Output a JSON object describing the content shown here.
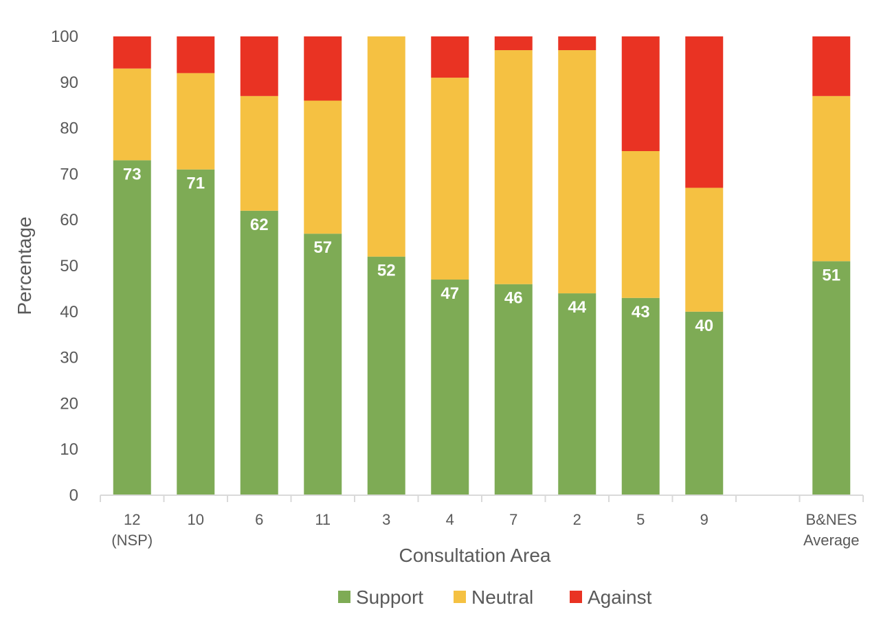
{
  "chart_data": {
    "type": "bar",
    "stacked": true,
    "categories": [
      "12 (NSP)",
      "10",
      "6",
      "11",
      "3",
      "4",
      "7",
      "2",
      "5",
      "9",
      "",
      "B&NES Average"
    ],
    "category_lines": [
      [
        "12",
        "(NSP)"
      ],
      [
        "10"
      ],
      [
        "6"
      ],
      [
        "11"
      ],
      [
        "3"
      ],
      [
        "4"
      ],
      [
        "7"
      ],
      [
        "2"
      ],
      [
        "5"
      ],
      [
        "9"
      ],
      [
        ""
      ],
      [
        "B&NES",
        "Average"
      ]
    ],
    "series": [
      {
        "name": "Support",
        "color": "#7eab55",
        "values": [
          73,
          71,
          62,
          57,
          52,
          47,
          46,
          44,
          43,
          40,
          null,
          51
        ]
      },
      {
        "name": "Neutral",
        "color": "#f5c142",
        "values": [
          20,
          21,
          25,
          29,
          48,
          44,
          51,
          53,
          32,
          27,
          null,
          36
        ]
      },
      {
        "name": "Against",
        "color": "#e93323",
        "values": [
          7,
          8,
          13,
          14,
          0,
          9,
          3,
          3,
          25,
          33,
          null,
          13
        ]
      }
    ],
    "data_labels": [
      "73",
      "71",
      "62",
      "57",
      "52",
      "47",
      "46",
      "44",
      "43",
      "40",
      "",
      "51"
    ],
    "xlabel": "Consultation Area",
    "ylabel": "Percentage",
    "ylim": [
      0,
      100
    ],
    "yticks": [
      0,
      10,
      20,
      30,
      40,
      50,
      60,
      70,
      80,
      90,
      100
    ],
    "grid": false,
    "legend_position": "bottom"
  }
}
